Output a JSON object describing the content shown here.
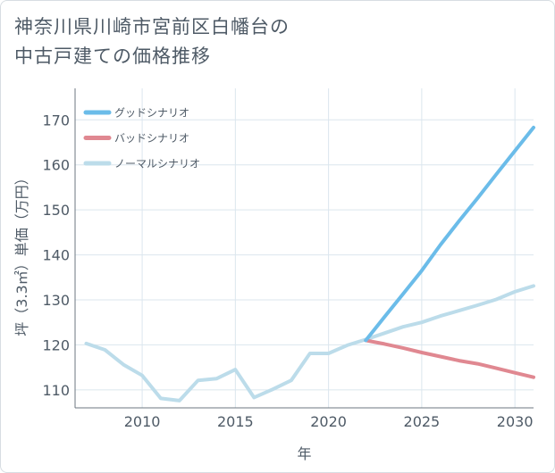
{
  "title": {
    "line1": "神奈川県川崎市宮前区白幡台の",
    "line2": "中古戸建ての価格推移"
  },
  "chart_data": {
    "type": "line",
    "title": "神奈川県川崎市宮前区白幡台の中古戸建ての価格推移",
    "xlabel": "年",
    "ylabel": "坪（3.3㎡）単価（万円）",
    "xlim": [
      2006.4,
      2031
    ],
    "ylim": [
      106,
      177
    ],
    "xticks": [
      2010,
      2015,
      2020,
      2025,
      2030
    ],
    "yticks": [
      110,
      120,
      130,
      140,
      150,
      160,
      170
    ],
    "legend_position": "top-left",
    "series": [
      {
        "name": "グッドシナリオ",
        "color": "#6bbce9",
        "x": [
          2022,
          2023,
          2024,
          2025,
          2026,
          2027,
          2028,
          2029,
          2030,
          2031
        ],
        "y": [
          121,
          126.2,
          131.3,
          136.5,
          142.2,
          147.5,
          152.6,
          157.9,
          163.1,
          168.3
        ]
      },
      {
        "name": "バッドシナリオ",
        "color": "#e08891",
        "x": [
          2022,
          2023,
          2024,
          2025,
          2026,
          2027,
          2028,
          2029,
          2030,
          2031
        ],
        "y": [
          121,
          120.2,
          119.3,
          118.3,
          117.4,
          116.5,
          115.8,
          114.8,
          113.8,
          112.8
        ]
      },
      {
        "name": "ノーマルシナリオ",
        "color": "#bcdcea",
        "x": [
          2007,
          2008,
          2009,
          2010,
          2011,
          2012,
          2013,
          2014,
          2015,
          2016,
          2017,
          2018,
          2019,
          2020,
          2021,
          2022,
          2023,
          2024,
          2025,
          2026,
          2027,
          2028,
          2029,
          2030,
          2031
        ],
        "y": [
          120.3,
          118.9,
          115.6,
          113.2,
          108.1,
          107.6,
          112.1,
          112.5,
          114.5,
          108.3,
          110.1,
          112.1,
          118.1,
          118.1,
          119.9,
          121.2,
          122.6,
          124,
          125,
          126.4,
          127.6,
          128.8,
          130.1,
          131.8,
          133.1
        ]
      }
    ]
  }
}
